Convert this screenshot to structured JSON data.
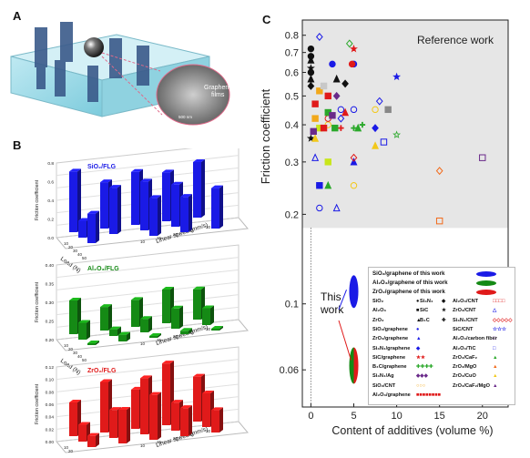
{
  "panels": {
    "a": {
      "letter": "A",
      "inset_label": "Graphene\nfilms",
      "scale_text": "500 nm"
    },
    "b": {
      "letter": "B"
    },
    "c": {
      "letter": "C"
    }
  },
  "bar_charts": [
    {
      "id": "sio2",
      "title": "SiO₂/FLG",
      "color": "#1a1ae6",
      "ylabel": "Friction coefficient",
      "xlabel": "Load (N)",
      "zlabel": "Linear speed (mm/s)",
      "ticks": [
        "0.8",
        "0.6",
        "0.4",
        "0.2",
        "0.0"
      ],
      "loads": [
        10,
        20,
        30,
        40,
        50
      ],
      "speeds": [
        10,
        15,
        20,
        25,
        30
      ],
      "values": [
        [
          0.72,
          0.55,
          0.63,
          0.58,
          0.66
        ],
        [
          0.2,
          0.55,
          0.58,
          0.5,
          0.0
        ],
        [
          0.35,
          0.0,
          0.45,
          0.42,
          0.48
        ]
      ]
    },
    {
      "id": "al2o3",
      "title": "Al₂O₃/FLG",
      "color": "#158a15",
      "ylabel": "Friction coefficient",
      "xlabel": "Load (N)",
      "zlabel": "Linear speed (mm/s)",
      "ticks": [
        "0.40",
        "0.35",
        "0.30",
        "0.25",
        "0.20"
      ],
      "loads": [
        10,
        20,
        30,
        40,
        50
      ],
      "speeds": [
        10,
        15,
        20,
        25,
        30
      ],
      "values": [
        [
          0.3,
          0.27,
          0.28,
          0.3,
          0.29
        ],
        [
          0.25,
          0.22,
          0.24,
          0.26,
          0.25
        ],
        [
          0.18,
          0.22,
          0.2,
          0.21,
          0.19
        ]
      ]
    },
    {
      "id": "zro2",
      "title": "ZrO₂/FLG",
      "color": "#e01a1a",
      "ylabel": "Friction coefficient",
      "xlabel": "Load (N)",
      "zlabel": "Linear speed (mm/s)",
      "ticks": [
        "0.12",
        "0.10",
        "0.08",
        "0.06",
        "0.04",
        "0.02",
        "0.00"
      ],
      "loads": [
        10,
        20,
        30,
        40,
        50
      ],
      "speeds": [
        10,
        15,
        20,
        25,
        30
      ],
      "values": [
        [
          0.06,
          0.09,
          0.07,
          0.11,
          0.08
        ],
        [
          0.03,
          0.05,
          0.1,
          0.05,
          0.06
        ],
        [
          0.02,
          0.06,
          0.08,
          0.05,
          0.04
        ]
      ]
    }
  ],
  "chart_data": {
    "type": "scatter",
    "xlabel": "Content of additives (volume %)",
    "ylabel": "Friction coefficient",
    "log_y": true,
    "xlim": [
      -1,
      23
    ],
    "ylim": [
      0.045,
      0.9
    ],
    "xticks": [
      0,
      5,
      10,
      15,
      20
    ],
    "yticks": [
      0.06,
      0.1,
      0.2,
      0.3,
      0.4,
      0.5,
      0.6,
      0.7,
      0.8
    ],
    "reference_region": {
      "label": "Reference work",
      "y_from": 0.18,
      "color": "#e6e6e6"
    },
    "this_work_label": "This\nwork",
    "this_work": [
      {
        "name": "SiO₂/graphene of this work",
        "x": 5,
        "y": 0.11,
        "color": "#1a1ae6"
      },
      {
        "name": "Al₂O₃/graphene of this work",
        "x": 5,
        "y": 0.062,
        "color": "#158a15"
      },
      {
        "name": "ZrO₂/graphene of this work",
        "x": 5,
        "y": 0.062,
        "color": "#e01a1a"
      }
    ],
    "series": [
      {
        "marker": "circle",
        "filled": true,
        "color": "#111",
        "points": [
          [
            0,
            0.72
          ],
          [
            0,
            0.68
          ],
          [
            0,
            0.6
          ]
        ]
      },
      {
        "marker": "star",
        "filled": true,
        "color": "#111",
        "points": [
          [
            0,
            0.62
          ],
          [
            0,
            0.36
          ]
        ]
      },
      {
        "marker": "triangle",
        "filled": true,
        "color": "#111",
        "points": [
          [
            0,
            0.66
          ],
          [
            0,
            0.57
          ]
        ]
      },
      {
        "marker": "diamond",
        "filled": true,
        "color": "#111",
        "points": [
          [
            0,
            0.54
          ]
        ]
      },
      {
        "marker": "square",
        "filled": true,
        "color": "#e01a1a",
        "points": [
          [
            0.5,
            0.47
          ],
          [
            2,
            0.5
          ]
        ]
      },
      {
        "marker": "square",
        "filled": true,
        "color": "#f2a81a",
        "points": [
          [
            1,
            0.52
          ],
          [
            0.5,
            0.42
          ]
        ]
      },
      {
        "marker": "square",
        "filled": true,
        "color": "#c8c8c8",
        "points": [
          [
            1.5,
            0.54
          ]
        ]
      },
      {
        "marker": "circle",
        "filled": true,
        "color": "#1a1ae6",
        "points": [
          [
            2.5,
            0.64
          ],
          [
            5,
            0.64
          ]
        ]
      },
      {
        "marker": "circle",
        "filled": true,
        "color": "#e01a1a",
        "points": [
          [
            4.8,
            0.64
          ]
        ]
      },
      {
        "marker": "star",
        "filled": true,
        "color": "#e01a1a",
        "points": [
          [
            5,
            0.72
          ]
        ]
      },
      {
        "marker": "star",
        "filled": true,
        "color": "#1a1ae6",
        "points": [
          [
            10,
            0.58
          ]
        ]
      },
      {
        "marker": "diamond",
        "filled": true,
        "color": "#6a2a8a",
        "points": [
          [
            3,
            0.5
          ]
        ]
      },
      {
        "marker": "triangle",
        "filled": true,
        "color": "#111",
        "points": [
          [
            3,
            0.57
          ]
        ]
      },
      {
        "marker": "diamond",
        "filled": true,
        "color": "#111",
        "points": [
          [
            4,
            0.55
          ]
        ]
      },
      {
        "marker": "circle",
        "filled": false,
        "color": "#1a1ae6",
        "points": [
          [
            1,
            0.21
          ],
          [
            3.5,
            0.45
          ],
          [
            5,
            0.45
          ]
        ]
      },
      {
        "marker": "diamond",
        "filled": false,
        "color": "#1a1ae6",
        "points": [
          [
            1,
            0.79
          ]
        ]
      },
      {
        "marker": "diamond",
        "filled": false,
        "color": "#1a1ae6",
        "points": [
          [
            3.5,
            0.42
          ],
          [
            8,
            0.48
          ]
        ]
      },
      {
        "marker": "triangle",
        "filled": false,
        "color": "#1a1ae6",
        "points": [
          [
            3,
            0.21
          ]
        ]
      },
      {
        "marker": "diamond",
        "filled": false,
        "color": "#2aa82a",
        "points": [
          [
            4.5,
            0.75
          ]
        ]
      },
      {
        "marker": "square",
        "filled": false,
        "color": "#6a2a8a",
        "points": [
          [
            20,
            0.31
          ]
        ]
      },
      {
        "marker": "diamond",
        "filled": false,
        "color": "#f26a1a",
        "points": [
          [
            15,
            0.28
          ]
        ]
      },
      {
        "marker": "square",
        "filled": false,
        "color": "#f26a1a",
        "points": [
          [
            15,
            0.19
          ]
        ]
      },
      {
        "marker": "square",
        "filled": false,
        "color": "#1a1ae6",
        "points": [
          [
            8.5,
            0.35
          ]
        ]
      },
      {
        "marker": "star",
        "filled": false,
        "color": "#2aa82a",
        "points": [
          [
            10,
            0.37
          ]
        ]
      },
      {
        "marker": "circle",
        "filled": false,
        "color": "#f2c81a",
        "points": [
          [
            2,
            0.4
          ],
          [
            5,
            0.25
          ],
          [
            7.5,
            0.45
          ]
        ]
      },
      {
        "marker": "circle",
        "filled": false,
        "color": "#2aa82a",
        "points": [
          [
            1,
            0.25
          ]
        ]
      },
      {
        "marker": "circle",
        "filled": false,
        "color": "#e01a1a",
        "points": [
          [
            2,
            0.42
          ]
        ]
      },
      {
        "marker": "square",
        "filled": true,
        "color": "#1a1ae6",
        "points": [
          [
            1,
            0.25
          ]
        ]
      },
      {
        "marker": "triangle",
        "filled": true,
        "color": "#2aa82a",
        "points": [
          [
            2,
            0.25
          ]
        ]
      },
      {
        "marker": "triangle",
        "filled": true,
        "color": "#1a1ae6",
        "points": [
          [
            5,
            0.3
          ]
        ]
      },
      {
        "marker": "triangle",
        "filled": true,
        "color": "#f2c81a",
        "points": [
          [
            0.5,
            0.36
          ],
          [
            7.5,
            0.34
          ]
        ]
      },
      {
        "marker": "square",
        "filled": true,
        "color": "#c8e61a",
        "points": [
          [
            2,
            0.3
          ],
          [
            1,
            0.39
          ]
        ]
      },
      {
        "marker": "cross",
        "filled": true,
        "color": "#e01a1a",
        "points": [
          [
            3.5,
            0.39
          ]
        ]
      },
      {
        "marker": "cross",
        "filled": true,
        "color": "#2aa82a",
        "points": [
          [
            5,
            0.39
          ],
          [
            6,
            0.4
          ]
        ]
      },
      {
        "marker": "diamond",
        "filled": true,
        "color": "#1a1ae6",
        "points": [
          [
            7.5,
            0.39
          ]
        ]
      },
      {
        "marker": "square",
        "filled": true,
        "color": "#2aa82a",
        "points": [
          [
            2.8,
            0.39
          ],
          [
            2,
            0.44
          ]
        ]
      },
      {
        "marker": "square",
        "filled": true,
        "color": "#e01a1a",
        "points": [
          [
            1.5,
            0.39
          ]
        ]
      },
      {
        "marker": "square",
        "filled": true,
        "color": "#6a2a8a",
        "points": [
          [
            2.5,
            0.43
          ],
          [
            0.3,
            0.38
          ]
        ]
      },
      {
        "marker": "square",
        "filled": true,
        "color": "#888888",
        "points": [
          [
            9,
            0.45
          ]
        ]
      },
      {
        "marker": "triangle",
        "filled": true,
        "color": "#2aa82a",
        "points": [
          [
            5.5,
            0.39
          ]
        ]
      },
      {
        "marker": "triangle",
        "filled": true,
        "color": "#e01a1a",
        "points": [
          [
            4,
            0.44
          ]
        ]
      },
      {
        "marker": "diamond",
        "filled": false,
        "color": "#e01a1a",
        "points": [
          [
            5,
            0.31
          ]
        ]
      },
      {
        "marker": "triangle",
        "filled": false,
        "color": "#1a1ae6",
        "points": [
          [
            0.5,
            0.31
          ]
        ]
      }
    ]
  },
  "legend": {
    "this_work_rows": [
      {
        "label": "SiO₂/graphene of this work",
        "color": "#1a1ae6"
      },
      {
        "label": "Al₂O₃/graphene of this work",
        "color": "#158a15"
      },
      {
        "label": "ZrO₂/graphene of this work",
        "color": "#e01a1a"
      }
    ],
    "left_col": [
      {
        "label": "SiO₂",
        "sym": "●",
        "color": "#111"
      },
      {
        "label": "Al₂O₃",
        "sym": "■",
        "color": "#111"
      },
      {
        "label": "ZrO₂",
        "sym": "▲",
        "color": "#111"
      },
      {
        "label": "SiO₂/graphene",
        "sym": "●",
        "color": "#1a1ae6"
      },
      {
        "label": "ZrO₂/graphene",
        "sym": "▲",
        "color": "#1a1ae6"
      },
      {
        "label": "Si₃N₄/graphene",
        "sym": "◆",
        "color": "#1a1ae6"
      },
      {
        "label": "SiC/graphene",
        "sym": "★★",
        "color": "#e01a1a"
      },
      {
        "label": "B₄C/graphene",
        "sym": "✚✚✚✚",
        "color": "#2aa82a"
      },
      {
        "label": "Si₃N₄/Ag",
        "sym": "◆◆◆",
        "color": "#6a2a8a"
      },
      {
        "label": "SiO₂/CNT",
        "sym": "○○○",
        "color": "#f2a81a"
      },
      {
        "label": "Al₂O₃/graphene",
        "sym": "■■■■■■■■",
        "color": "#e01a1a"
      }
    ],
    "mid_col": [
      {
        "label": "Si₃N₄",
        "sym": "◆",
        "color": "#111"
      },
      {
        "label": "SiC",
        "sym": "★",
        "color": "#111"
      },
      {
        "label": "B₄C",
        "sym": "✚",
        "color": "#111"
      }
    ],
    "right_col": [
      {
        "label": "Al₂O₃/CNT",
        "sym": "□□□□",
        "color": "#e01a1a"
      },
      {
        "label": "ZrO₂/CNT",
        "sym": "△",
        "color": "#1a1ae6"
      },
      {
        "label": "Si₃N₄/CNT",
        "sym": "◇◇◇◇◇",
        "color": "#e01a1a"
      },
      {
        "label": "SiC/CNT",
        "sym": "☆☆☆",
        "color": "#1a1ae6"
      },
      {
        "label": "Al₂O₃/carbon fiber",
        "sym": "□",
        "color": "#6a2a8a"
      },
      {
        "label": "Al₂O₃/TiC",
        "sym": "□",
        "color": "#1a1ae6"
      },
      {
        "label": "ZrO₂/CaF₂",
        "sym": "▲",
        "color": "#2aa82a"
      },
      {
        "label": "ZrO₂/MgO",
        "sym": "▲",
        "color": "#f26a1a"
      },
      {
        "label": "ZrO₂/CuO",
        "sym": "▲",
        "color": "#f2c81a"
      },
      {
        "label": "ZrO₂/CaF₂/MgO",
        "sym": "▲",
        "color": "#6a2a8a"
      }
    ]
  }
}
